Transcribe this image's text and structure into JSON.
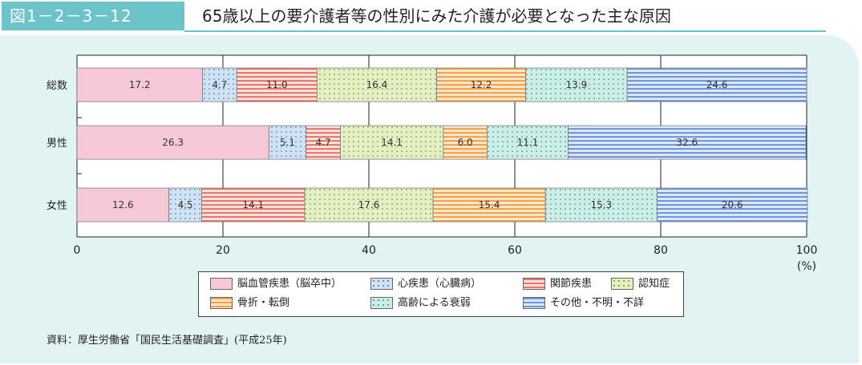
{
  "header": {
    "figure_label": "図1－2－3－12",
    "title": "65歳以上の要介護者等の性別にみた介護が必要となった主な原因"
  },
  "source": "資料：厚生労働省「国民生活基礎調査」(平成25年)",
  "chart_data": {
    "type": "bar",
    "orientation": "horizontal",
    "stacked": true,
    "categories": [
      "総数",
      "男性",
      "女性"
    ],
    "xlim": [
      0,
      100
    ],
    "xticks": [
      "0",
      "20",
      "40",
      "60",
      "80",
      "100"
    ],
    "x_unit": "(%)",
    "grid": true,
    "legend_position": "bottom",
    "series": [
      {
        "name": "脳血管疾患（脳卒中）",
        "values": [
          17.2,
          26.3,
          12.6
        ],
        "color": "#f6c8d8",
        "pattern": "solid"
      },
      {
        "name": "心疾患（心臓病）",
        "values": [
          4.7,
          5.1,
          4.5
        ],
        "color": "#cfe3f5",
        "pattern": "dots"
      },
      {
        "name": "関節疾患",
        "values": [
          11.0,
          4.7,
          14.1
        ],
        "color": "#f2a49a",
        "pattern": "hstripes"
      },
      {
        "name": "認知症",
        "values": [
          16.4,
          14.1,
          17.6
        ],
        "color": "#e1efc0",
        "pattern": "dots"
      },
      {
        "name": "骨折・転倒",
        "values": [
          12.2,
          6.0,
          15.4
        ],
        "color": "#f8c890",
        "pattern": "hstripes"
      },
      {
        "name": "高齢による衰弱",
        "values": [
          13.9,
          11.1,
          15.3
        ],
        "color": "#c9ebe5",
        "pattern": "dots"
      },
      {
        "name": "その他・不明・不詳",
        "values": [
          24.6,
          32.6,
          20.6
        ],
        "color": "#a9c6ec",
        "pattern": "hstripes"
      }
    ]
  }
}
